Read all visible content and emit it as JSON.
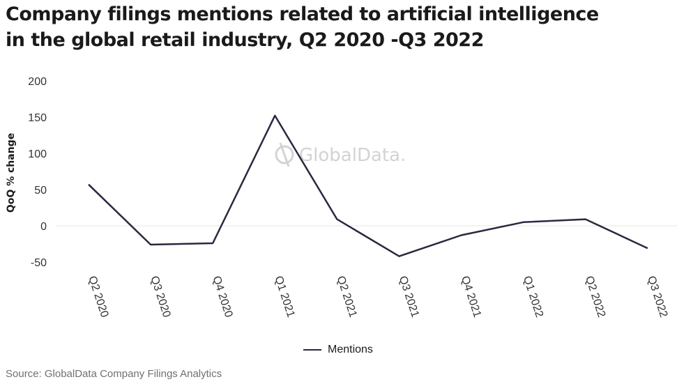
{
  "title_lines": [
    "Company filings mentions related to artificial intelligence",
    "in the global retail industry, Q2 2020 -Q3 2022"
  ],
  "watermark": "GlobalData.",
  "source": "Source: GlobalData Company Filings Analytics",
  "colors": {
    "line": "#2b2740",
    "zero_line": "#e6e6e6",
    "watermark": "#d3d3d3"
  },
  "chart_data": {
    "type": "line",
    "title": "Company filings mentions related to artificial intelligence in the global retail industry, Q2 2020 -Q3 2022",
    "ylabel": "QoQ % change",
    "xlabel": "",
    "categories": [
      "Q2 2020",
      "Q3 2020",
      "Q4 2020",
      "Q1 2021",
      "Q2 2021",
      "Q3 2021",
      "Q4 2021",
      "Q1 2022",
      "Q2 2022",
      "Q3 2022"
    ],
    "series": [
      {
        "name": "Mentions",
        "values": [
          57,
          -26,
          -24,
          152,
          9,
          -42,
          -13,
          5,
          9,
          -31
        ]
      }
    ],
    "ylim": [
      -50,
      200
    ],
    "yticks": [
      200,
      150,
      100,
      50,
      0,
      -50
    ],
    "legend": "bottom-center",
    "grid": false
  }
}
